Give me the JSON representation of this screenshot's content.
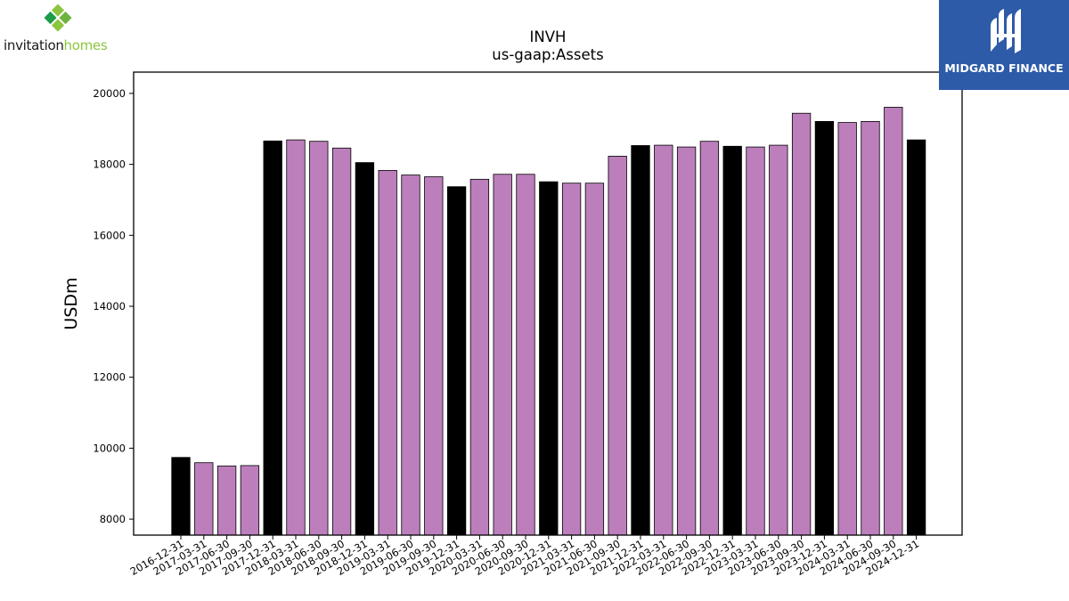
{
  "branding": {
    "left_logo": {
      "text_main": "invitation",
      "text_accent": "homes",
      "icon": "invitation-homes-logo-icon",
      "accent_color": "#8cc63f"
    },
    "right_logo": {
      "text": "MIDGARD FINANCE",
      "icon": "midgard-finance-logo-icon",
      "background": "#2d5ba8"
    }
  },
  "chart_data": {
    "type": "bar",
    "title": "INVH",
    "subtitle": "us-gaap:Assets",
    "xlabel": "",
    "ylabel": "USDm",
    "ylim": [
      7550,
      20600
    ],
    "yticks": [
      8000,
      10000,
      12000,
      14000,
      16000,
      18000,
      20000
    ],
    "grid": false,
    "categories": [
      "2016-12-31",
      "2017-03-31",
      "2017-06-30",
      "2017-09-30",
      "2017-12-31",
      "2018-03-31",
      "2018-06-30",
      "2018-09-30",
      "2018-12-31",
      "2019-03-31",
      "2019-06-30",
      "2019-09-30",
      "2019-12-31",
      "2020-03-31",
      "2020-06-30",
      "2020-09-30",
      "2020-12-31",
      "2021-03-31",
      "2021-06-30",
      "2021-09-30",
      "2021-12-31",
      "2022-03-31",
      "2022-06-30",
      "2022-09-30",
      "2022-12-31",
      "2023-03-31",
      "2023-06-30",
      "2023-09-30",
      "2023-12-31",
      "2024-03-31",
      "2024-06-30",
      "2024-09-30",
      "2024-12-31"
    ],
    "values": [
      9740,
      9590,
      9500,
      9510,
      18660,
      18690,
      18650,
      18460,
      18050,
      17830,
      17700,
      17650,
      17370,
      17580,
      17720,
      17720,
      17510,
      17470,
      17470,
      18230,
      18530,
      18540,
      18490,
      18650,
      18510,
      18490,
      18540,
      19440,
      19210,
      19180,
      19210,
      19610,
      18690
    ],
    "bar_colors": [
      "#000000",
      "#bc7fbc",
      "#bc7fbc",
      "#bc7fbc",
      "#000000",
      "#bc7fbc",
      "#bc7fbc",
      "#bc7fbc",
      "#000000",
      "#bc7fbc",
      "#bc7fbc",
      "#bc7fbc",
      "#000000",
      "#bc7fbc",
      "#bc7fbc",
      "#bc7fbc",
      "#000000",
      "#bc7fbc",
      "#bc7fbc",
      "#bc7fbc",
      "#000000",
      "#bc7fbc",
      "#bc7fbc",
      "#bc7fbc",
      "#000000",
      "#bc7fbc",
      "#bc7fbc",
      "#bc7fbc",
      "#000000",
      "#bc7fbc",
      "#bc7fbc",
      "#bc7fbc",
      "#000000"
    ]
  }
}
